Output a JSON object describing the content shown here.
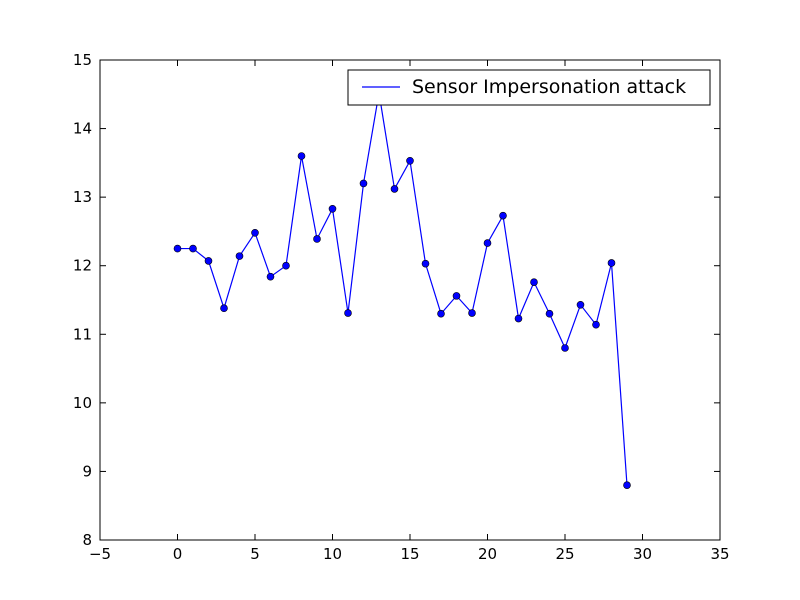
{
  "chart_data": {
    "type": "line",
    "x": [
      0,
      1,
      2,
      3,
      4,
      5,
      6,
      7,
      8,
      9,
      10,
      11,
      12,
      13,
      14,
      15,
      16,
      17,
      18,
      19,
      20,
      21,
      22,
      23,
      24,
      25,
      26,
      27,
      28,
      29
    ],
    "series": [
      {
        "name": "Sensor Impersonation attack",
        "color": "#0000ff",
        "values": [
          12.25,
          12.25,
          12.07,
          11.38,
          12.14,
          12.48,
          11.84,
          12.0,
          13.6,
          12.39,
          12.83,
          11.31,
          13.2,
          14.52,
          13.12,
          13.53,
          12.03,
          11.3,
          11.56,
          11.31,
          12.33,
          12.73,
          11.23,
          11.76,
          11.3,
          10.8,
          11.43,
          11.14,
          12.04,
          8.8
        ]
      }
    ],
    "xlim": [
      -5,
      35
    ],
    "ylim": [
      8,
      15
    ],
    "xticks": [
      -5,
      0,
      5,
      10,
      15,
      20,
      25,
      30,
      35
    ],
    "yticks": [
      8,
      9,
      10,
      11,
      12,
      13,
      14,
      15
    ],
    "xtick_labels": [
      "−5",
      "0",
      "5",
      "10",
      "15",
      "20",
      "25",
      "30",
      "35"
    ],
    "ytick_labels": [
      "8",
      "9",
      "10",
      "11",
      "12",
      "13",
      "14",
      "15"
    ],
    "title": "",
    "xlabel": "",
    "ylabel": "",
    "grid": false,
    "legend_position": "top-right",
    "marker": "circle"
  }
}
